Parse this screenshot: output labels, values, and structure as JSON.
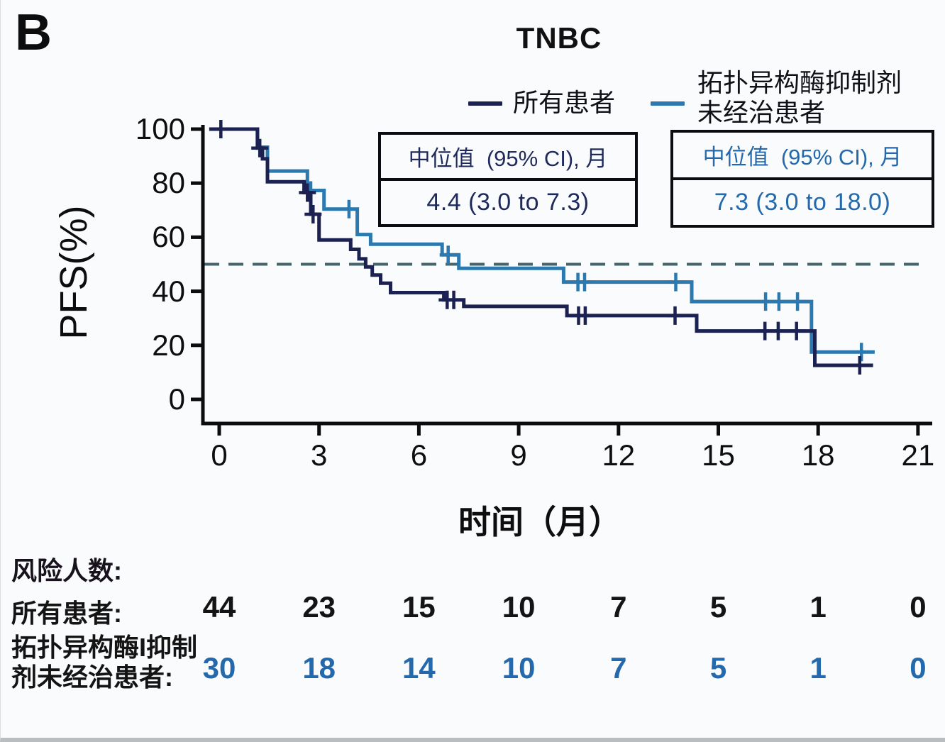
{
  "panel_label": "B",
  "title": "TNBC",
  "legend": {
    "items": [
      {
        "name": "all-patients",
        "color": "#1b2150",
        "lines": [
          "所有患者"
        ]
      },
      {
        "name": "topo-naive-patients",
        "color": "#2b79ae",
        "lines": [
          "拓扑异构酶抑制剂",
          "未经治患者"
        ]
      }
    ]
  },
  "median_boxes": [
    {
      "header": "中位值  (95% CI), 月",
      "value": "4.4 (3.0 to 7.3)",
      "text_color": "#1f2a5c"
    },
    {
      "header": "中位值  (95% CI), 月",
      "value": "7.3 (3.0 to 18.0)",
      "text_color": "#2469ac"
    }
  ],
  "axes": {
    "y_label": "PFS(%)",
    "x_label": "时间（月）"
  },
  "risk_table": {
    "heading": "风险人数:",
    "rows": [
      {
        "label_lines": [
          "所有患者:"
        ],
        "color": "#141414",
        "values": [
          "44",
          "23",
          "15",
          "10",
          "7",
          "5",
          "1",
          "0"
        ]
      },
      {
        "label_lines": [
          "拓扑异构酶I抑制",
          "剂未经治患者:"
        ],
        "color": "#2469ac",
        "values": [
          "30",
          "18",
          "14",
          "10",
          "7",
          "5",
          "1",
          "0"
        ]
      }
    ]
  },
  "chart_data": {
    "type": "line",
    "subtype": "kaplan-meier-step",
    "title": "TNBC",
    "xlabel": "时间（月）",
    "ylabel": "PFS(%)",
    "xlim": [
      0,
      21
    ],
    "ylim": [
      0,
      100
    ],
    "x_ticks": [
      0,
      3,
      6,
      9,
      12,
      15,
      18,
      21
    ],
    "y_ticks": [
      100,
      80,
      60,
      40,
      20,
      0
    ],
    "grid": false,
    "legend_position": "top",
    "reference_line": {
      "y": 50,
      "style": "dashed",
      "color": "#44666b"
    },
    "series": [
      {
        "name": "所有患者",
        "color": "#1b2150",
        "median_95ci_months": "4.4 (3.0 to 7.3)",
        "points": [
          [
            -0.3,
            100
          ],
          [
            1.15,
            100
          ],
          [
            1.15,
            93
          ],
          [
            1.3,
            93
          ],
          [
            1.3,
            89
          ],
          [
            1.45,
            89
          ],
          [
            1.45,
            80.5
          ],
          [
            2.55,
            80.5
          ],
          [
            2.55,
            76.5
          ],
          [
            2.75,
            76.5
          ],
          [
            2.75,
            68.5
          ],
          [
            3.0,
            68.5
          ],
          [
            3.0,
            59
          ],
          [
            3.95,
            59
          ],
          [
            3.95,
            55.5
          ],
          [
            4.2,
            55.5
          ],
          [
            4.2,
            52
          ],
          [
            4.4,
            52
          ],
          [
            4.4,
            49
          ],
          [
            4.6,
            49
          ],
          [
            4.6,
            46
          ],
          [
            4.85,
            46
          ],
          [
            4.85,
            43
          ],
          [
            5.15,
            43
          ],
          [
            5.15,
            39.5
          ],
          [
            6.75,
            39.5
          ],
          [
            6.75,
            36.8
          ],
          [
            7.35,
            36.8
          ],
          [
            7.35,
            34.4
          ],
          [
            10.45,
            34.4
          ],
          [
            10.45,
            31
          ],
          [
            14.35,
            31
          ],
          [
            14.35,
            25.3
          ],
          [
            17.9,
            25.3
          ],
          [
            17.9,
            12.6
          ],
          [
            19.65,
            12.6
          ]
        ],
        "censor_marks": [
          [
            0.05,
            100
          ],
          [
            1.22,
            93
          ],
          [
            2.65,
            76.5
          ],
          [
            2.82,
            68.5
          ],
          [
            6.85,
            36.8
          ],
          [
            7.05,
            36.8
          ],
          [
            10.8,
            31
          ],
          [
            11.0,
            31
          ],
          [
            13.7,
            31
          ],
          [
            16.4,
            25.3
          ],
          [
            16.8,
            25.3
          ],
          [
            17.35,
            25.3
          ],
          [
            19.25,
            12.6
          ]
        ]
      },
      {
        "name": "拓扑异构酶抑制剂未经治患者",
        "color": "#2b79ae",
        "median_95ci_months": "7.3 (3.0 to 18.0)",
        "points": [
          [
            -0.3,
            100
          ],
          [
            1.15,
            100
          ],
          [
            1.15,
            93.3
          ],
          [
            1.45,
            93.3
          ],
          [
            1.45,
            84.5
          ],
          [
            2.65,
            84.5
          ],
          [
            2.65,
            77.3
          ],
          [
            3.15,
            77.3
          ],
          [
            3.15,
            70.4
          ],
          [
            4.15,
            70.4
          ],
          [
            4.15,
            61
          ],
          [
            4.55,
            61
          ],
          [
            4.55,
            57.4
          ],
          [
            6.7,
            57.4
          ],
          [
            6.7,
            53.5
          ],
          [
            7.2,
            53.5
          ],
          [
            7.2,
            48.5
          ],
          [
            10.35,
            48.5
          ],
          [
            10.35,
            43.4
          ],
          [
            14.2,
            43.4
          ],
          [
            14.2,
            36.2
          ],
          [
            17.8,
            36.2
          ],
          [
            17.8,
            17.5
          ],
          [
            19.7,
            17.5
          ]
        ],
        "censor_marks": [
          [
            2.75,
            77.3
          ],
          [
            3.9,
            70.4
          ],
          [
            6.88,
            53.5
          ],
          [
            10.78,
            43.4
          ],
          [
            10.98,
            43.4
          ],
          [
            13.72,
            43.4
          ],
          [
            16.42,
            36.2
          ],
          [
            16.82,
            36.2
          ],
          [
            17.38,
            36.2
          ],
          [
            19.3,
            17.5
          ]
        ]
      }
    ],
    "number_at_risk": {
      "times": [
        0,
        3,
        6,
        9,
        12,
        15,
        18,
        21
      ],
      "rows": [
        {
          "name": "所有患者",
          "counts": [
            44,
            23,
            15,
            10,
            7,
            5,
            1,
            0
          ]
        },
        {
          "name": "拓扑异构酶I抑制剂未经治患者",
          "counts": [
            30,
            18,
            14,
            10,
            7,
            5,
            1,
            0
          ]
        }
      ]
    }
  }
}
